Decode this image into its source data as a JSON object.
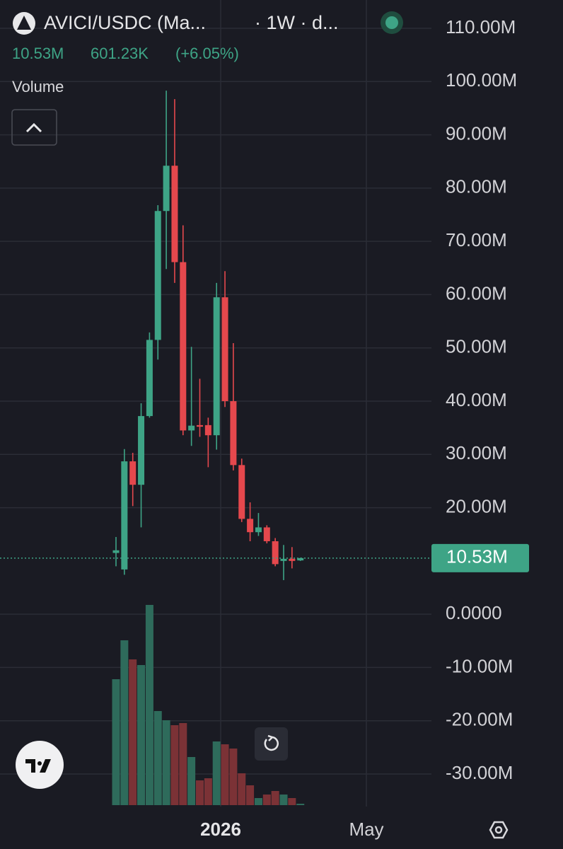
{
  "chart_data": {
    "type": "candlestick",
    "symbol": "AVICI/USDC (Ma...",
    "interval": "· 1W · d...",
    "change": "601.23K",
    "change_percent": "(+6.05%)",
    "volume_label": "Volume",
    "last_price": {
      "value": 10.53,
      "label": "10.53M"
    },
    "up_color": "#3ea486",
    "down_color": "#e5484d",
    "volume_up_color": "#2e6b5b",
    "volume_down_color": "#7b3236",
    "open": [
      11.5,
      8.4,
      28.7,
      24.3,
      37.2,
      51.5,
      75.7,
      84.2,
      66.1,
      34.5,
      35.5,
      35.5,
      33.6,
      59.5,
      40.0,
      28.0,
      17.9,
      15.4,
      16.3,
      13.7,
      10.0,
      10.4,
      10.1
    ],
    "high": [
      14.5,
      31.0,
      30.3,
      39.6,
      52.9,
      76.8,
      98.3,
      96.7,
      73.0,
      50.2,
      44.2,
      36.9,
      62.2,
      64.4,
      50.9,
      29.2,
      21.0,
      19.0,
      16.7,
      14.3,
      13.0,
      12.6,
      10.6
    ],
    "low": [
      9.0,
      7.4,
      20.3,
      16.3,
      36.9,
      47.8,
      64.8,
      62.2,
      33.6,
      31.6,
      33.3,
      27.6,
      30.9,
      38.9,
      27.0,
      17.3,
      13.7,
      14.7,
      13.3,
      9.0,
      6.4,
      8.6,
      10.0
    ],
    "close": [
      12.0,
      28.7,
      24.3,
      37.2,
      51.5,
      75.7,
      84.2,
      66.1,
      34.5,
      35.4,
      35.2,
      33.6,
      59.5,
      40.0,
      28.0,
      17.9,
      15.4,
      16.3,
      13.7,
      9.4,
      10.4,
      10.0,
      10.53
    ],
    "volume": [
      178,
      233,
      206,
      198,
      283,
      133,
      120,
      113,
      116,
      68,
      35,
      38,
      90,
      86,
      80,
      45,
      28,
      10,
      15,
      20,
      15,
      10,
      2
    ],
    "x_labels": [
      "2026",
      "May"
    ],
    "ylim": [
      -36,
      112
    ],
    "yticks": [
      {
        "value": 110,
        "label": "110.00M"
      },
      {
        "value": 100,
        "label": "100.00M"
      },
      {
        "value": 90,
        "label": "90.00M"
      },
      {
        "value": 80,
        "label": "80.00M"
      },
      {
        "value": 70,
        "label": "70.00M"
      },
      {
        "value": 60,
        "label": "60.00M"
      },
      {
        "value": 50,
        "label": "50.00M"
      },
      {
        "value": 40,
        "label": "40.00M"
      },
      {
        "value": 30,
        "label": "30.00M"
      },
      {
        "value": 20,
        "label": "20.00M"
      },
      {
        "value": 0,
        "label": "0.0000"
      },
      {
        "value": -10,
        "label": "-10.00M"
      },
      {
        "value": -20,
        "label": "-20.00M"
      },
      {
        "value": -30,
        "label": "-30.00M"
      }
    ],
    "grid": true
  }
}
